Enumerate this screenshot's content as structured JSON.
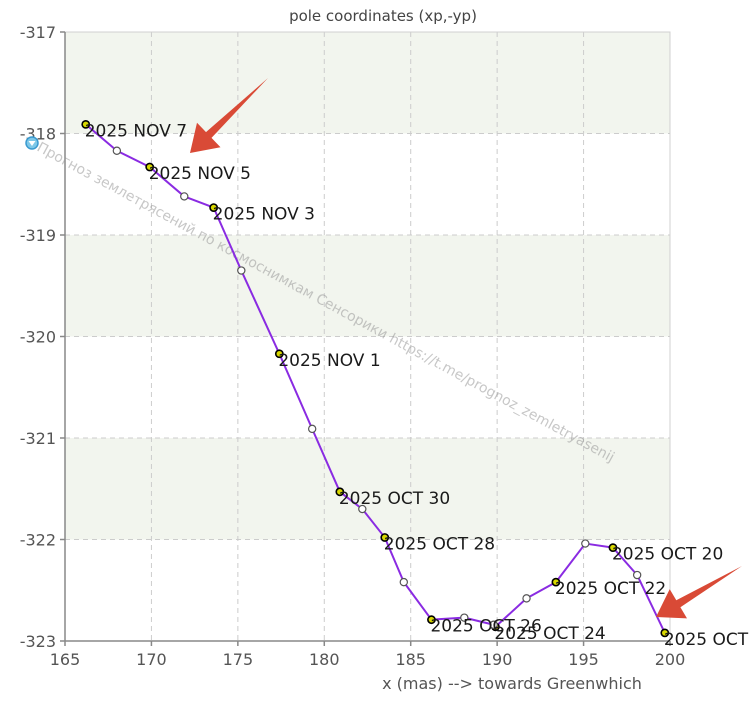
{
  "chart_data": {
    "type": "line",
    "title": "pole coordinates (xp,-yp)",
    "xlabel": "x (mas) --> towards Greenwhich",
    "ylabel": "",
    "xlim": [
      165,
      200
    ],
    "ylim": [
      -323,
      -317
    ],
    "x_ticks": [
      165,
      170,
      175,
      180,
      185,
      190,
      195,
      200
    ],
    "y_ticks": [
      -317,
      -318,
      -319,
      -320,
      -321,
      -322,
      -323
    ],
    "grid": true,
    "line_color": "#8a2be2",
    "band_color": "#f2f5ee",
    "labeled_marker_color": "#d8d800",
    "open_marker_color": "#ffffff",
    "arrow_color": "#d94a36",
    "series": [
      {
        "points": [
          {
            "x": 199.7,
            "y": -322.92,
            "label": "2025 OCT"
          },
          {
            "x": 198.1,
            "y": -322.35,
            "label": ""
          },
          {
            "x": 196.7,
            "y": -322.08,
            "label": "2025 OCT 20"
          },
          {
            "x": 195.1,
            "y": -322.04,
            "label": ""
          },
          {
            "x": 193.4,
            "y": -322.42,
            "label": "2025 OCT 22"
          },
          {
            "x": 191.7,
            "y": -322.58,
            "label": ""
          },
          {
            "x": 189.9,
            "y": -322.86,
            "label": "2025 OCT 24"
          },
          {
            "x": 189.8,
            "y": -322.84,
            "label": ""
          },
          {
            "x": 188.1,
            "y": -322.77,
            "label": ""
          },
          {
            "x": 186.2,
            "y": -322.79,
            "label": "2025 OCT 26"
          },
          {
            "x": 184.6,
            "y": -322.42,
            "label": ""
          },
          {
            "x": 183.5,
            "y": -321.98,
            "label": "2025 OCT 28"
          },
          {
            "x": 182.2,
            "y": -321.7,
            "label": ""
          },
          {
            "x": 180.9,
            "y": -321.53,
            "label": "2025 OCT 30"
          },
          {
            "x": 179.3,
            "y": -320.91,
            "label": ""
          },
          {
            "x": 177.4,
            "y": -320.17,
            "label": "2025 NOV 1"
          },
          {
            "x": 175.2,
            "y": -319.35,
            "label": ""
          },
          {
            "x": 173.6,
            "y": -318.73,
            "label": "2025 NOV 3"
          },
          {
            "x": 171.9,
            "y": -318.62,
            "label": ""
          },
          {
            "x": 169.9,
            "y": -318.33,
            "label": "2025 NOV 5"
          },
          {
            "x": 168.0,
            "y": -318.17,
            "label": ""
          },
          {
            "x": 166.2,
            "y": -317.91,
            "label": "2025 NOV 7"
          }
        ]
      }
    ],
    "watermark": "Прогноз землетрясений по космоснимкам Сенсорики  https://t.me/prognoz_zemletryasenij"
  }
}
